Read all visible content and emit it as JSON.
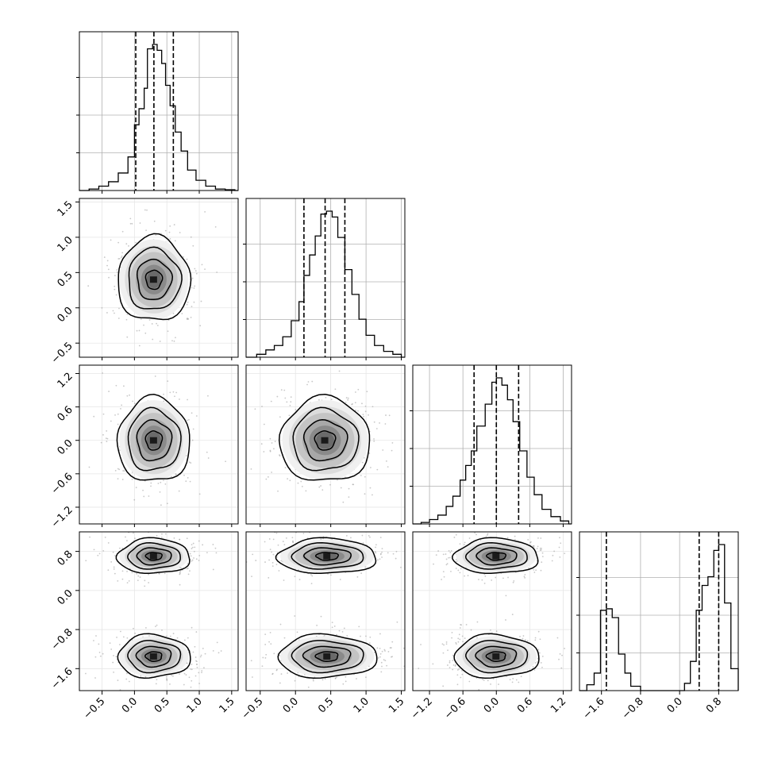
{
  "chart_data": {
    "type": "corner",
    "description_free": true,
    "dimensions": [
      {
        "key": "p0",
        "range": [
          -0.85,
          1.6
        ],
        "ticks": [
          -0.5,
          0.0,
          0.5,
          1.0,
          1.5
        ],
        "tick_labels": [
          "−0.5",
          "0.0",
          "0.5",
          "1.0",
          "1.5"
        ],
        "quantiles": [
          0.02,
          0.3,
          0.6
        ],
        "hist_bins": [
          {
            "x": -0.85,
            "v": 0.0
          },
          {
            "x": -0.7,
            "v": 0.01
          },
          {
            "x": -0.55,
            "v": 0.03
          },
          {
            "x": -0.4,
            "v": 0.06
          },
          {
            "x": -0.25,
            "v": 0.12
          },
          {
            "x": -0.1,
            "v": 0.23
          },
          {
            "x": 0.0,
            "v": 0.45
          },
          {
            "x": 0.07,
            "v": 0.56
          },
          {
            "x": 0.15,
            "v": 0.7
          },
          {
            "x": 0.2,
            "v": 0.97
          },
          {
            "x": 0.28,
            "v": 1.0
          },
          {
            "x": 0.35,
            "v": 0.96
          },
          {
            "x": 0.42,
            "v": 0.87
          },
          {
            "x": 0.48,
            "v": 0.72
          },
          {
            "x": 0.55,
            "v": 0.58
          },
          {
            "x": 0.63,
            "v": 0.4
          },
          {
            "x": 0.72,
            "v": 0.27
          },
          {
            "x": 0.82,
            "v": 0.14
          },
          {
            "x": 0.95,
            "v": 0.07
          },
          {
            "x": 1.1,
            "v": 0.03
          },
          {
            "x": 1.25,
            "v": 0.01
          },
          {
            "x": 1.4,
            "v": 0.005
          },
          {
            "x": 1.55,
            "v": 0.0
          }
        ]
      },
      {
        "key": "p1",
        "range": [
          -0.7,
          1.55
        ],
        "ticks": [
          -0.5,
          0.0,
          0.5,
          1.0,
          1.5
        ],
        "tick_labels": [
          "−0.5",
          "0.0",
          "0.5",
          "1.0",
          "1.5"
        ],
        "quantiles": [
          0.12,
          0.42,
          0.7
        ],
        "hist_bins": [
          {
            "x": -0.7,
            "v": 0.0
          },
          {
            "x": -0.55,
            "v": 0.02
          },
          {
            "x": -0.42,
            "v": 0.05
          },
          {
            "x": -0.3,
            "v": 0.08
          },
          {
            "x": -0.18,
            "v": 0.14
          },
          {
            "x": -0.06,
            "v": 0.25
          },
          {
            "x": 0.05,
            "v": 0.38
          },
          {
            "x": 0.12,
            "v": 0.56
          },
          {
            "x": 0.2,
            "v": 0.7
          },
          {
            "x": 0.28,
            "v": 0.83
          },
          {
            "x": 0.36,
            "v": 0.98
          },
          {
            "x": 0.44,
            "v": 1.0
          },
          {
            "x": 0.52,
            "v": 0.96
          },
          {
            "x": 0.6,
            "v": 0.82
          },
          {
            "x": 0.7,
            "v": 0.6
          },
          {
            "x": 0.8,
            "v": 0.43
          },
          {
            "x": 0.9,
            "v": 0.26
          },
          {
            "x": 1.0,
            "v": 0.15
          },
          {
            "x": 1.12,
            "v": 0.08
          },
          {
            "x": 1.25,
            "v": 0.04
          },
          {
            "x": 1.38,
            "v": 0.02
          },
          {
            "x": 1.5,
            "v": 0.0
          }
        ]
      },
      {
        "key": "p2",
        "range": [
          -1.5,
          1.35
        ],
        "ticks": [
          -1.2,
          -0.6,
          0.0,
          0.6,
          1.2
        ],
        "tick_labels": [
          "−1.2",
          "−0.6",
          "0.0",
          "0.6",
          "1.2"
        ],
        "quantiles": [
          -0.4,
          0.0,
          0.4
        ],
        "hist_bins": [
          {
            "x": -1.5,
            "v": 0.0
          },
          {
            "x": -1.35,
            "v": 0.01
          },
          {
            "x": -1.2,
            "v": 0.03
          },
          {
            "x": -1.05,
            "v": 0.06
          },
          {
            "x": -0.9,
            "v": 0.12
          },
          {
            "x": -0.78,
            "v": 0.19
          },
          {
            "x": -0.65,
            "v": 0.3
          },
          {
            "x": -0.55,
            "v": 0.4
          },
          {
            "x": -0.45,
            "v": 0.5
          },
          {
            "x": -0.35,
            "v": 0.67
          },
          {
            "x": -0.2,
            "v": 0.82
          },
          {
            "x": -0.08,
            "v": 0.97
          },
          {
            "x": 0.0,
            "v": 1.0
          },
          {
            "x": 0.1,
            "v": 0.95
          },
          {
            "x": 0.2,
            "v": 0.85
          },
          {
            "x": 0.3,
            "v": 0.7
          },
          {
            "x": 0.42,
            "v": 0.5
          },
          {
            "x": 0.55,
            "v": 0.32
          },
          {
            "x": 0.68,
            "v": 0.2
          },
          {
            "x": 0.82,
            "v": 0.1
          },
          {
            "x": 0.98,
            "v": 0.05
          },
          {
            "x": 1.15,
            "v": 0.02
          },
          {
            "x": 1.3,
            "v": 0.0
          }
        ]
      },
      {
        "key": "p3",
        "range": [
          -2.05,
          1.2
        ],
        "ticks": [
          -1.6,
          -0.8,
          0.0,
          0.8
        ],
        "tick_labels": [
          "−1.6",
          "−0.8",
          "0.0",
          "0.8"
        ],
        "quantiles": [
          -1.5,
          0.4,
          0.8
        ],
        "hist_bins": [
          {
            "x": -2.05,
            "v": 0.0
          },
          {
            "x": -1.9,
            "v": 0.04
          },
          {
            "x": -1.75,
            "v": 0.12
          },
          {
            "x": -1.62,
            "v": 0.55
          },
          {
            "x": -1.5,
            "v": 0.56
          },
          {
            "x": -1.38,
            "v": 0.5
          },
          {
            "x": -1.25,
            "v": 0.25
          },
          {
            "x": -1.12,
            "v": 0.12
          },
          {
            "x": -1.0,
            "v": 0.03
          },
          {
            "x": -0.8,
            "v": 0.0
          },
          {
            "x": 0.0,
            "v": 0.0
          },
          {
            "x": 0.1,
            "v": 0.05
          },
          {
            "x": 0.22,
            "v": 0.2
          },
          {
            "x": 0.34,
            "v": 0.55
          },
          {
            "x": 0.46,
            "v": 0.72
          },
          {
            "x": 0.58,
            "v": 0.78
          },
          {
            "x": 0.7,
            "v": 0.96
          },
          {
            "x": 0.8,
            "v": 1.0
          },
          {
            "x": 0.92,
            "v": 0.6
          },
          {
            "x": 1.05,
            "v": 0.15
          },
          {
            "x": 1.2,
            "v": 0.0
          }
        ]
      }
    ],
    "bottom_axis_tick_labels": [
      "−0.5",
      "0.0",
      "0.5",
      "1.0",
      "1.5"
    ],
    "scatter_contours": [
      {
        "row": 1,
        "col": 0,
        "clusters": [
          {
            "cx": 0.3,
            "cy": 0.4,
            "sx": 0.28,
            "sy": 0.3
          }
        ]
      },
      {
        "row": 2,
        "col": 0,
        "clusters": [
          {
            "cx": 0.3,
            "cy": 0.0,
            "sx": 0.28,
            "sy": 0.38
          }
        ]
      },
      {
        "row": 2,
        "col": 1,
        "clusters": [
          {
            "cx": 0.42,
            "cy": 0.0,
            "sx": 0.32,
            "sy": 0.38
          }
        ]
      },
      {
        "row": 3,
        "col": 0,
        "clusters": [
          {
            "cx": 0.3,
            "cy": 0.7,
            "sx": 0.28,
            "sy": 0.18
          },
          {
            "cx": 0.3,
            "cy": -1.35,
            "sx": 0.28,
            "sy": 0.22
          }
        ]
      },
      {
        "row": 3,
        "col": 1,
        "clusters": [
          {
            "cx": 0.45,
            "cy": 0.7,
            "sx": 0.35,
            "sy": 0.18
          },
          {
            "cx": 0.45,
            "cy": -1.35,
            "sx": 0.35,
            "sy": 0.22
          }
        ]
      },
      {
        "row": 3,
        "col": 2,
        "clusters": [
          {
            "cx": 0.0,
            "cy": 0.7,
            "sx": 0.38,
            "sy": 0.18
          },
          {
            "cx": 0.0,
            "cy": -1.35,
            "sx": 0.38,
            "sy": 0.22
          }
        ]
      }
    ],
    "grid": true,
    "colors": {
      "ink": "#000000",
      "grid": "#b0b0b0",
      "scatter": "#9a9a9a",
      "cell_dark": "#555555"
    }
  }
}
